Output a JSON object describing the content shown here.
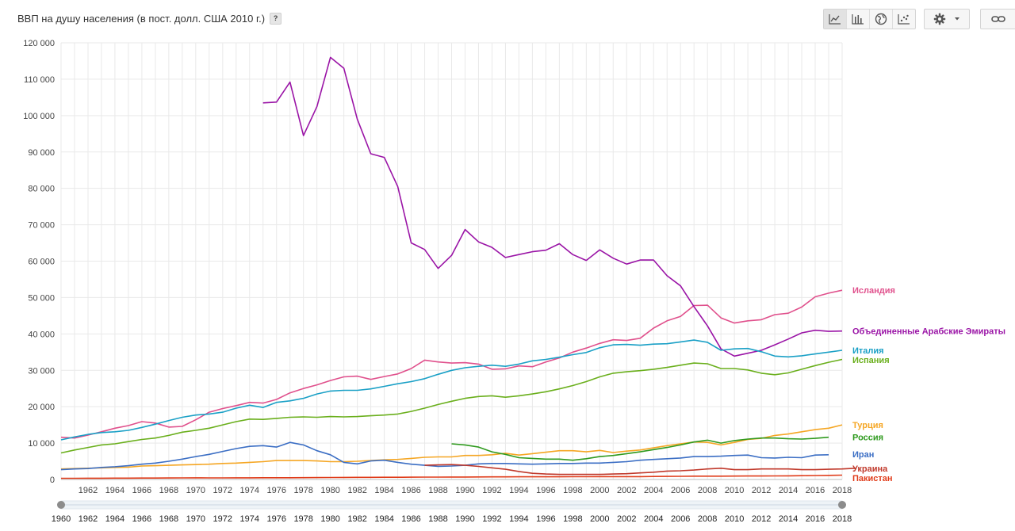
{
  "header": {
    "title": "ВВП на душу населения (в пост. долл. США 2010 г.)",
    "help_label": "?"
  },
  "toolbar": {
    "views": [
      {
        "icon": "line-chart-icon",
        "active": true
      },
      {
        "icon": "bar-chart-icon",
        "active": false
      },
      {
        "icon": "globe-icon",
        "active": false
      },
      {
        "icon": "scatter-chart-icon",
        "active": false
      }
    ],
    "settings_icon": "gear-icon",
    "link_icon": "link-icon"
  },
  "chart_data": {
    "type": "line",
    "title": "ВВП на душу населения (в пост. долл. США 2010 г.)",
    "xlabel": "",
    "ylabel": "",
    "xlim": [
      1960,
      2018
    ],
    "ylim": [
      0,
      120000
    ],
    "y_ticks": [
      0,
      10000,
      20000,
      30000,
      40000,
      50000,
      60000,
      70000,
      80000,
      90000,
      100000,
      110000,
      120000
    ],
    "y_tick_labels": [
      "0",
      "10 000",
      "20 000",
      "30 000",
      "40 000",
      "50 000",
      "60 000",
      "70 000",
      "80 000",
      "90 000",
      "100 000",
      "110 000",
      "120 000"
    ],
    "x_tick_labels": [
      "1962",
      "1964",
      "1966",
      "1968",
      "1970",
      "1972",
      "1974",
      "1976",
      "1978",
      "1980",
      "1982",
      "1984",
      "1986",
      "1988",
      "1990",
      "1992",
      "1994",
      "1996",
      "1998",
      "2000",
      "2002",
      "2004",
      "2006",
      "2008",
      "2010",
      "2012",
      "2014",
      "2016",
      "2018"
    ],
    "grid": true,
    "legend": "right, labels at line ends",
    "range_selector": {
      "start": 1960,
      "end": 2018,
      "labels": [
        "1960",
        "1962",
        "1964",
        "1966",
        "1968",
        "1970",
        "1972",
        "1974",
        "1976",
        "1978",
        "1980",
        "1982",
        "1984",
        "1986",
        "1988",
        "1990",
        "1992",
        "1994",
        "1996",
        "1998",
        "2000",
        "2002",
        "2004",
        "2006",
        "2008",
        "2010",
        "2012",
        "2014",
        "2016",
        "2018"
      ]
    },
    "series": [
      {
        "name": "Исландия",
        "color": "#e0508c",
        "label_value": 52000,
        "start": 1960,
        "values": [
          11600,
          11400,
          12200,
          13100,
          14100,
          14800,
          15900,
          15500,
          14400,
          14600,
          16400,
          18500,
          19500,
          20300,
          21200,
          21000,
          22000,
          23800,
          25000,
          26000,
          27200,
          28200,
          28400,
          27500,
          28300,
          29000,
          30500,
          32800,
          32300,
          32000,
          32100,
          31700,
          30300,
          30400,
          31200,
          31000,
          32300,
          33400,
          35000,
          36100,
          37400,
          38400,
          38200,
          38800,
          41600,
          43600,
          44800,
          47800,
          47900,
          44400,
          43000,
          43600,
          43900,
          45300,
          45700,
          47400,
          50200,
          51200,
          52000
        ]
      },
      {
        "name": "Объединенные Арабские Эмираты",
        "color": "#9a14a6",
        "label_value": 40800,
        "start": 1975,
        "values": [
          103500,
          103700,
          109200,
          94500,
          102500,
          116000,
          113000,
          99000,
          89500,
          88500,
          80500,
          65000,
          63200,
          58000,
          61600,
          68700,
          65300,
          63800,
          61000,
          61800,
          62600,
          63000,
          64800,
          61800,
          60200,
          63100,
          60800,
          59200,
          60300,
          60300,
          56000,
          53200,
          47500,
          42200,
          35900,
          33900,
          34700,
          35500,
          37000,
          38600,
          40300,
          41000,
          40700,
          40800
        ]
      },
      {
        "name": "Италия",
        "color": "#1aa0c6",
        "label_value": 35500,
        "start": 1960,
        "values": [
          10900,
          11700,
          12400,
          12900,
          13100,
          13500,
          14300,
          15200,
          16200,
          17100,
          17700,
          18000,
          18500,
          19600,
          20400,
          19800,
          21200,
          21600,
          22300,
          23500,
          24300,
          24500,
          24500,
          24900,
          25600,
          26300,
          26900,
          27700,
          28900,
          30000,
          30700,
          31100,
          31400,
          31100,
          31700,
          32600,
          33000,
          33600,
          34300,
          34900,
          36200,
          37000,
          37100,
          36900,
          37200,
          37300,
          37800,
          38300,
          37700,
          35500,
          35900,
          36000,
          35100,
          33900,
          33700,
          34000,
          34500,
          35000,
          35500
        ]
      },
      {
        "name": "Испания",
        "color": "#6aaf1c",
        "label_value": 33000,
        "start": 1960,
        "values": [
          7300,
          8100,
          8800,
          9500,
          9800,
          10400,
          11000,
          11400,
          12100,
          13000,
          13500,
          14100,
          15000,
          15900,
          16600,
          16500,
          16800,
          17100,
          17200,
          17100,
          17300,
          17200,
          17300,
          17500,
          17700,
          18000,
          18700,
          19600,
          20600,
          21500,
          22300,
          22800,
          23000,
          22600,
          23000,
          23500,
          24100,
          24900,
          25800,
          26900,
          28200,
          29200,
          29600,
          29900,
          30300,
          30800,
          31400,
          32000,
          31800,
          30500,
          30500,
          30100,
          29200,
          28800,
          29300,
          30300,
          31300,
          32200,
          33000
        ]
      },
      {
        "name": "Турция",
        "color": "#f5a623",
        "label_value": 15000,
        "start": 1960,
        "values": [
          2900,
          3000,
          3100,
          3200,
          3300,
          3400,
          3700,
          3800,
          3900,
          4000,
          4100,
          4200,
          4400,
          4500,
          4700,
          4900,
          5200,
          5200,
          5200,
          5100,
          4900,
          4900,
          5000,
          5200,
          5400,
          5500,
          5800,
          6100,
          6200,
          6200,
          6600,
          6600,
          6800,
          7200,
          6700,
          7100,
          7500,
          7900,
          7900,
          7600,
          8000,
          7400,
          7800,
          8100,
          8700,
          9300,
          9800,
          10300,
          10200,
          9500,
          10200,
          11000,
          11300,
          12100,
          12500,
          13100,
          13700,
          14100,
          15000
        ]
      },
      {
        "name": "Россия",
        "color": "#2f9a1e",
        "label_value": 11600,
        "start": 1989,
        "values": [
          9800,
          9500,
          8900,
          7600,
          6900,
          6000,
          5800,
          5600,
          5600,
          5300,
          5700,
          6300,
          6600,
          7100,
          7600,
          8200,
          8800,
          9500,
          10300,
          10800,
          10000,
          10700,
          11100,
          11400,
          11400,
          11200,
          11100,
          11300,
          11600
        ]
      },
      {
        "name": "Иран",
        "color": "#3b6ec4",
        "label_value": 7000,
        "start": 1960,
        "values": [
          2700,
          2900,
          3000,
          3300,
          3500,
          3800,
          4200,
          4500,
          5000,
          5600,
          6300,
          6900,
          7700,
          8500,
          9100,
          9300,
          8900,
          10200,
          9500,
          7900,
          6800,
          4700,
          4300,
          5100,
          5300,
          4700,
          4200,
          3900,
          3600,
          3700,
          3900,
          4300,
          4400,
          4400,
          4300,
          4200,
          4300,
          4400,
          4400,
          4500,
          4500,
          4700,
          4900,
          5300,
          5500,
          5700,
          5900,
          6300,
          6300,
          6400,
          6600,
          6700,
          6000,
          5900,
          6100,
          6000,
          6700,
          6800,
          null
        ]
      },
      {
        "name": "Украина",
        "color": "#c0392b",
        "label_value": 3100,
        "start": 1987,
        "values": [
          3900,
          4000,
          4100,
          3900,
          3600,
          3200,
          2800,
          2200,
          1700,
          1500,
          1400,
          1400,
          1400,
          1400,
          1500,
          1600,
          1800,
          2000,
          2300,
          2400,
          2600,
          2900,
          3100,
          2700,
          2700,
          2900,
          2900,
          2900,
          2700,
          2700,
          2800,
          2900,
          3100
        ]
      },
      {
        "name": "Пакистан",
        "color": "#e03c1a",
        "label_value": 1200,
        "start": 1960,
        "values": [
          320,
          330,
          340,
          350,
          360,
          370,
          390,
          400,
          420,
          430,
          450,
          440,
          440,
          460,
          460,
          470,
          480,
          490,
          510,
          520,
          540,
          560,
          580,
          590,
          600,
          620,
          640,
          650,
          660,
          680,
          680,
          700,
          720,
          720,
          730,
          740,
          750,
          750,
          760,
          760,
          780,
          780,
          780,
          790,
          820,
          850,
          880,
          910,
          910,
          920,
          930,
          950,
          960,
          990,
          1010,
          1040,
          1080,
          1130,
          1200
        ]
      }
    ]
  }
}
